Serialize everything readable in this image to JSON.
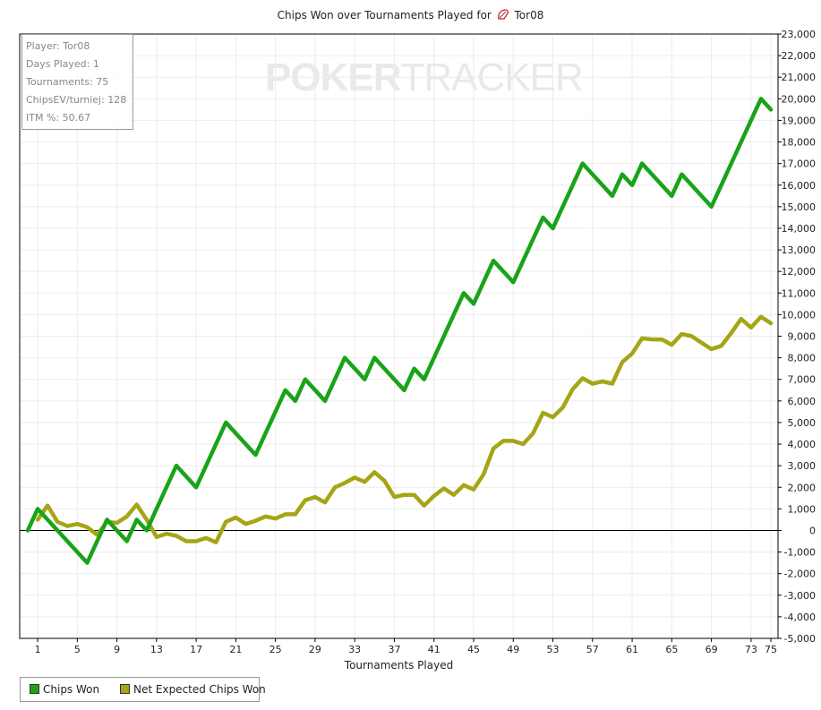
{
  "title_prefix": "Chips Won over Tournaments Played for",
  "player_name": "Tor08",
  "watermark": {
    "bold": "POKER",
    "light": "TRACKER"
  },
  "stats": [
    "Player: Tor08",
    "Days Played: 1",
    "Tournaments: 75",
    "ChipsEV/turniej: 128",
    "ITM %: 50.67"
  ],
  "colors": {
    "chips_won": "#19a319",
    "net_expected": "#a5a515",
    "zero_line": "#000000",
    "grid": "#ebebeb"
  },
  "legend": [
    {
      "label": "Chips Won",
      "color": "#19a319"
    },
    {
      "label": "Net Expected Chips Won",
      "color": "#a5a515"
    }
  ],
  "chart_data": {
    "type": "line",
    "xlabel": "Tournaments Played",
    "ylabel": "",
    "xlim": [
      0,
      75
    ],
    "ylim": [
      -5000,
      23000
    ],
    "x_ticks": [
      1,
      5,
      9,
      13,
      17,
      21,
      25,
      29,
      33,
      37,
      41,
      45,
      49,
      53,
      57,
      61,
      65,
      69,
      73,
      75
    ],
    "y_ticks": [
      23000,
      22000,
      21000,
      20000,
      19000,
      18000,
      17000,
      16000,
      15000,
      14000,
      13000,
      12000,
      11000,
      10000,
      9000,
      8000,
      7000,
      6000,
      5000,
      4000,
      3000,
      2000,
      1000,
      0,
      -1000,
      -2000,
      -3000,
      -4000,
      -5000
    ],
    "y_tick_labels": [
      "23,000",
      "22,000",
      "21,000",
      "20,000",
      "19,000",
      "18,000",
      "17,000",
      "16,000",
      "15,000",
      "14,000",
      "13,000",
      "12,000",
      "11,000",
      "10,000",
      "9,000",
      "8,000",
      "7,000",
      "6,000",
      "5,000",
      "4,000",
      "3,000",
      "2,000",
      "1,000",
      "0",
      "-1,000",
      "-2,000",
      "-3,000",
      "-4,000",
      "-5,000"
    ],
    "grid": true,
    "legend_position": "bottom-left",
    "series": [
      {
        "name": "Chips Won",
        "x": [
          0,
          1,
          6,
          8,
          10,
          11,
          12,
          15,
          17,
          20,
          23,
          26,
          27,
          28,
          30,
          32,
          34,
          35,
          38,
          39,
          40,
          44,
          45,
          47,
          49,
          52,
          53,
          56,
          59,
          60,
          61,
          62,
          65,
          66,
          69,
          74,
          75
        ],
        "y": [
          0,
          1000,
          -1500,
          500,
          -500,
          500,
          0,
          3000,
          2000,
          5000,
          3500,
          6500,
          6000,
          7000,
          6000,
          8000,
          7000,
          8000,
          6500,
          7500,
          7000,
          11000,
          10500,
          12500,
          11500,
          14500,
          14000,
          17000,
          15500,
          16500,
          16000,
          17000,
          15500,
          16500,
          15000,
          20000,
          19500
        ]
      },
      {
        "name": "Net Expected Chips Won",
        "x": [
          1,
          2,
          3,
          4,
          5,
          6,
          7,
          8,
          9,
          10,
          11,
          12,
          13,
          14,
          15,
          16,
          17,
          18,
          19,
          20,
          21,
          22,
          23,
          24,
          25,
          26,
          27,
          28,
          29,
          30,
          31,
          32,
          33,
          34,
          35,
          36,
          37,
          38,
          39,
          40,
          41,
          42,
          43,
          44,
          45,
          46,
          47,
          48,
          49,
          50,
          51,
          52,
          53,
          54,
          55,
          56,
          57,
          58,
          59,
          60,
          61,
          62,
          63,
          64,
          65,
          66,
          67,
          68,
          69,
          70,
          71,
          72,
          73,
          74,
          75
        ],
        "y": [
          500,
          1150,
          400,
          200,
          300,
          150,
          -200,
          400,
          350,
          650,
          1200,
          500,
          -300,
          -150,
          -250,
          -500,
          -500,
          -350,
          -550,
          400,
          600,
          300,
          450,
          650,
          550,
          750,
          750,
          1400,
          1550,
          1300,
          2000,
          2200,
          2450,
          2250,
          2700,
          2300,
          1550,
          1650,
          1650,
          1150,
          1600,
          1950,
          1650,
          2100,
          1900,
          2600,
          3800,
          4150,
          4150,
          4000,
          4500,
          5450,
          5250,
          5700,
          6550,
          7050,
          6800,
          6900,
          6800,
          7800,
          8200,
          8900,
          8850,
          8850,
          8600,
          9100,
          9000,
          8700,
          8400,
          8550,
          9150,
          9800,
          9400,
          9900,
          9600
        ]
      }
    ]
  }
}
